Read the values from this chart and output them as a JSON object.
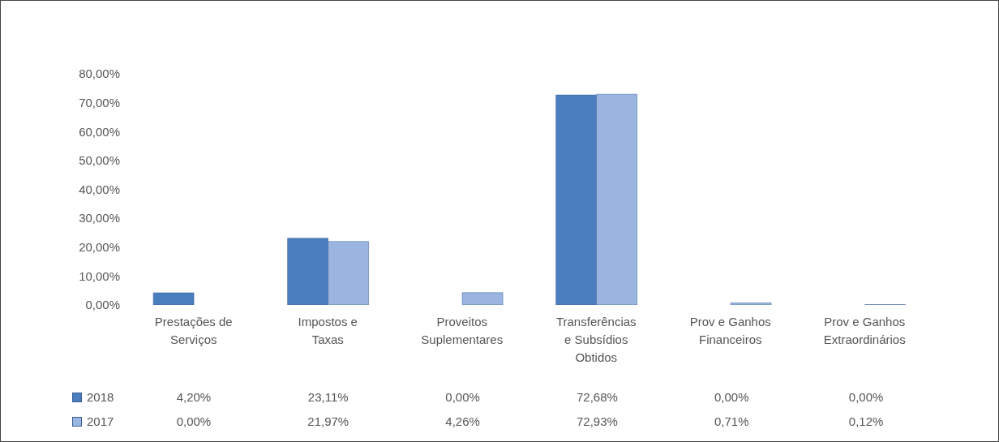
{
  "chart_data": {
    "type": "bar",
    "categories": [
      "Prestações de Serviços",
      "Impostos e Taxas",
      "Proveitos Suplementares",
      "Transferências e Subsídios Obtidos",
      "Prov e Ganhos Financeiros",
      "Prov e Ganhos Extraordinários"
    ],
    "series": [
      {
        "name": "2018",
        "color": "#4a7ebf",
        "values": [
          4.2,
          23.11,
          0,
          72.68,
          0,
          0
        ],
        "value_labels": [
          "4,20%",
          "23,11%",
          "0,00%",
          "72,68%",
          "0,00%",
          "0,00%"
        ]
      },
      {
        "name": "2017",
        "color": "#9ab6e0",
        "values": [
          0,
          21.97,
          4.26,
          72.93,
          0.71,
          0.12
        ],
        "value_labels": [
          "0,00%",
          "21,97%",
          "4,26%",
          "72,93%",
          "0,71%",
          "0,12%"
        ]
      }
    ],
    "ylim": [
      0,
      80
    ],
    "yticks": [
      {
        "value": 0,
        "label": "0,00%"
      },
      {
        "value": 10,
        "label": "10,00%"
      },
      {
        "value": 20,
        "label": "20,00%"
      },
      {
        "value": 30,
        "label": "30,00%"
      },
      {
        "value": 40,
        "label": "40,00%"
      },
      {
        "value": 50,
        "label": "50,00%"
      },
      {
        "value": 60,
        "label": "60,00%"
      },
      {
        "value": 70,
        "label": "70,00%"
      },
      {
        "value": 80,
        "label": "80,00%"
      }
    ],
    "grid": false,
    "legend": "bottom"
  }
}
